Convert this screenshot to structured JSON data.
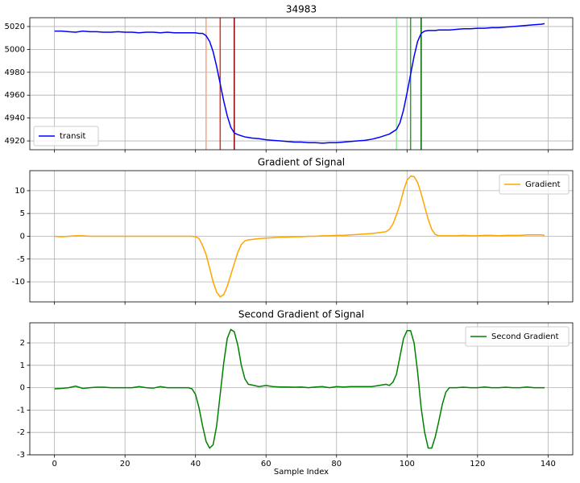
{
  "chart_data": [
    {
      "type": "line",
      "title": "34983",
      "x": [
        0,
        2,
        4,
        6,
        8,
        10,
        12,
        14,
        16,
        18,
        20,
        22,
        24,
        26,
        28,
        30,
        32,
        34,
        36,
        38,
        39,
        40,
        41,
        42,
        43,
        44,
        45,
        46,
        47,
        48,
        49,
        50,
        51,
        52,
        53,
        54,
        55,
        56,
        58,
        60,
        62,
        64,
        66,
        68,
        70,
        72,
        74,
        76,
        78,
        80,
        82,
        84,
        86,
        88,
        90,
        92,
        94,
        95,
        96,
        97,
        98,
        99,
        100,
        101,
        102,
        103,
        104,
        105,
        106,
        107,
        108,
        109,
        110,
        111,
        112,
        114,
        116,
        118,
        120,
        122,
        124,
        126,
        128,
        130,
        132,
        134,
        136,
        138,
        139
      ],
      "series": [
        {
          "name": "transit",
          "color": "#0000ff",
          "values": [
            5016,
            5016,
            5015.5,
            5015,
            5016,
            5015.5,
            5015.5,
            5015,
            5015,
            5015.5,
            5015,
            5015,
            5014.5,
            5015,
            5015,
            5014.5,
            5015,
            5014.5,
            5014.5,
            5014.5,
            5014.5,
            5014.5,
            5014,
            5014,
            5012,
            5007,
            4998,
            4985,
            4970,
            4955,
            4942,
            4932,
            4927,
            4925.5,
            4924.5,
            4923.5,
            4923,
            4922.5,
            4922,
            4921,
            4920.5,
            4920,
            4919.5,
            4919,
            4919,
            4918.5,
            4918.5,
            4918,
            4918.5,
            4918.5,
            4919,
            4919.5,
            4920,
            4920.5,
            4921.5,
            4923,
            4925,
            4926,
            4928,
            4930,
            4936,
            4947,
            4962,
            4978,
            4994,
            5007,
            5014,
            5016,
            5016.5,
            5016.5,
            5016.5,
            5017,
            5017,
            5017,
            5017,
            5017.5,
            5018,
            5018,
            5018.5,
            5018.5,
            5019,
            5019,
            5019.5,
            5020,
            5020.5,
            5021,
            5021.5,
            5022,
            5022.5
          ]
        }
      ],
      "vlines": [
        {
          "x": 43,
          "color": "#ffa07a"
        },
        {
          "x": 47,
          "color": "#e03020"
        },
        {
          "x": 51,
          "color": "#8b0000"
        },
        {
          "x": 97,
          "color": "#90ee90"
        },
        {
          "x": 101,
          "color": "#2ca02c"
        },
        {
          "x": 104,
          "color": "#006400"
        }
      ],
      "xlim": [
        -7,
        147
      ],
      "xticks": [
        0,
        20,
        40,
        60,
        80,
        100,
        120,
        140
      ],
      "ylim": [
        4912.3,
        5027.7
      ],
      "yticks": [
        4920,
        4940,
        4960,
        4980,
        5000,
        5020
      ],
      "grid": true,
      "legend": "lower-left"
    },
    {
      "type": "line",
      "title": "Gradient of Signal",
      "x": [
        0,
        2,
        4,
        6,
        8,
        10,
        12,
        14,
        16,
        18,
        20,
        22,
        24,
        26,
        28,
        30,
        32,
        34,
        36,
        38,
        39,
        40,
        41,
        42,
        43,
        44,
        45,
        46,
        47,
        48,
        49,
        50,
        51,
        52,
        53,
        54,
        55,
        56,
        58,
        60,
        62,
        64,
        66,
        68,
        70,
        72,
        74,
        76,
        78,
        80,
        82,
        84,
        86,
        88,
        90,
        92,
        94,
        95,
        96,
        97,
        98,
        99,
        100,
        101,
        102,
        103,
        104,
        105,
        106,
        107,
        108,
        109,
        110,
        111,
        112,
        114,
        116,
        118,
        120,
        122,
        124,
        126,
        128,
        130,
        132,
        134,
        136,
        138,
        139
      ],
      "series": [
        {
          "name": "Gradient",
          "color": "#ffa500",
          "values": [
            0,
            -0.1,
            0,
            0.1,
            0.1,
            0,
            0,
            0,
            0,
            0,
            0,
            0,
            0,
            0,
            0,
            0,
            0,
            0,
            0,
            0,
            0,
            -0.1,
            -0.5,
            -2,
            -4,
            -7,
            -10,
            -12.3,
            -13.3,
            -12.8,
            -11,
            -8.5,
            -6,
            -3.5,
            -1.8,
            -1,
            -0.8,
            -0.7,
            -0.5,
            -0.4,
            -0.3,
            -0.2,
            -0.2,
            -0.1,
            -0.1,
            0,
            0,
            0.1,
            0.1,
            0.2,
            0.2,
            0.3,
            0.4,
            0.5,
            0.6,
            0.8,
            1.0,
            1.5,
            2.7,
            4.7,
            7,
            10,
            12.3,
            13.2,
            13.1,
            11.8,
            9.4,
            6.5,
            3.7,
            1.5,
            0.4,
            0.1,
            0.1,
            0.1,
            0.1,
            0.1,
            0.2,
            0.1,
            0.1,
            0.2,
            0.2,
            0.1,
            0.2,
            0.2,
            0.2,
            0.3,
            0.3,
            0.3,
            0.2
          ]
        }
      ],
      "xlim": [
        -7,
        147
      ],
      "xticks": [
        0,
        20,
        40,
        60,
        80,
        100,
        120,
        140
      ],
      "ylim": [
        -14.4,
        14.4
      ],
      "yticks": [
        -10,
        -5,
        0,
        5,
        10
      ],
      "grid": true,
      "legend": "upper-right"
    },
    {
      "type": "line",
      "title": "Second Gradient of Signal",
      "xlabel": "Sample Index",
      "x": [
        0,
        2,
        4,
        6,
        8,
        10,
        12,
        14,
        16,
        18,
        20,
        22,
        24,
        26,
        28,
        30,
        32,
        34,
        36,
        38,
        39,
        40,
        41,
        42,
        43,
        44,
        45,
        46,
        47,
        48,
        49,
        50,
        51,
        52,
        53,
        54,
        55,
        56,
        58,
        60,
        62,
        64,
        66,
        68,
        70,
        72,
        74,
        76,
        78,
        80,
        82,
        84,
        86,
        88,
        90,
        92,
        94,
        95,
        96,
        97,
        98,
        99,
        100,
        101,
        102,
        103,
        104,
        105,
        106,
        107,
        108,
        109,
        110,
        111,
        112,
        114,
        116,
        118,
        120,
        122,
        124,
        126,
        128,
        130,
        132,
        134,
        136,
        138,
        139
      ],
      "series": [
        {
          "name": "Second Gradient",
          "color": "#008000",
          "values": [
            -0.05,
            -0.03,
            0,
            0.07,
            -0.03,
            0,
            0.02,
            0.02,
            0,
            0,
            0,
            0,
            0.05,
            0,
            -0.02,
            0.05,
            0,
            0,
            0,
            0,
            -0.05,
            -0.3,
            -0.9,
            -1.7,
            -2.4,
            -2.7,
            -2.55,
            -1.7,
            -0.3,
            1.1,
            2.2,
            2.6,
            2.5,
            1.9,
            1.0,
            0.4,
            0.15,
            0.12,
            0.05,
            0.1,
            0.05,
            0.03,
            0.03,
            0.02,
            0.03,
            0,
            0.03,
            0.05,
            0,
            0.05,
            0.03,
            0.05,
            0.05,
            0.05,
            0.05,
            0.1,
            0.15,
            0.1,
            0.25,
            0.6,
            1.4,
            2.2,
            2.55,
            2.55,
            2.0,
            0.7,
            -0.9,
            -2.0,
            -2.7,
            -2.7,
            -2.2,
            -1.5,
            -0.75,
            -0.2,
            0,
            0,
            0.02,
            0,
            0,
            0.03,
            0,
            0,
            0.02,
            0,
            0,
            0.03,
            0,
            0,
            0
          ]
        }
      ],
      "xlim": [
        -7,
        147
      ],
      "xticks": [
        0,
        20,
        40,
        60,
        80,
        100,
        120,
        140
      ],
      "xticklabels": true,
      "ylim": [
        -3,
        2.9
      ],
      "yticks": [
        -3,
        -2,
        -1,
        0,
        1,
        2
      ],
      "grid": true,
      "legend": "upper-right"
    }
  ]
}
